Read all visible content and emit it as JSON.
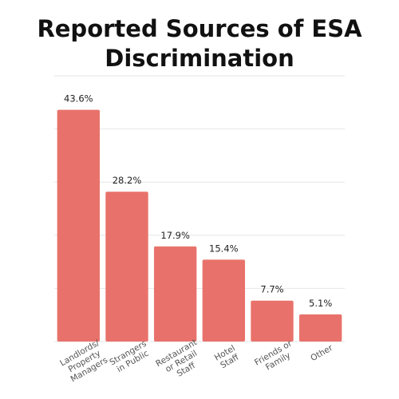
{
  "chart_data": {
    "type": "bar",
    "title": [
      "Reported Sources of ESA",
      "Discrimination"
    ],
    "categories": [
      [
        "Landlords/",
        "Property",
        "Managers"
      ],
      [
        "Strangers",
        "in Public"
      ],
      [
        "Restaurant",
        "or Retail",
        "Staff"
      ],
      [
        "Hotel",
        "Staff"
      ],
      [
        "Friends or",
        "Family"
      ],
      [
        "Other"
      ]
    ],
    "values": [
      43.6,
      28.2,
      17.9,
      15.4,
      7.7,
      5.1
    ],
    "value_labels": [
      "43.6%",
      "28.2%",
      "17.9%",
      "15.4%",
      "7.7%",
      "5.1%"
    ],
    "ylim": [
      0,
      50
    ],
    "grid": true,
    "bar_color": "#e8726b",
    "grid_color": "#e6e6e6",
    "category_label_rotation_deg": -30
  }
}
